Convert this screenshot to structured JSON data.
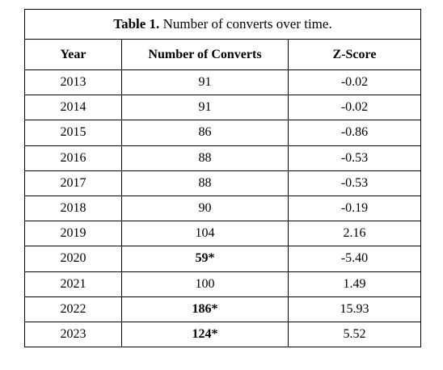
{
  "table": {
    "caption_label": "Table 1.",
    "caption_text": " Number of converts over time.",
    "columns": [
      "Year",
      "Number of Converts",
      "Z-Score"
    ],
    "rows": [
      {
        "year": "2013",
        "converts": "91",
        "converts_bold": false,
        "z": "-0.02"
      },
      {
        "year": "2014",
        "converts": "91",
        "converts_bold": false,
        "z": "-0.02"
      },
      {
        "year": "2015",
        "converts": "86",
        "converts_bold": false,
        "z": "-0.86"
      },
      {
        "year": "2016",
        "converts": "88",
        "converts_bold": false,
        "z": "-0.53"
      },
      {
        "year": "2017",
        "converts": "88",
        "converts_bold": false,
        "z": "-0.53"
      },
      {
        "year": "2018",
        "converts": "90",
        "converts_bold": false,
        "z": "-0.19"
      },
      {
        "year": "2019",
        "converts": "104",
        "converts_bold": false,
        "z": "2.16"
      },
      {
        "year": "2020",
        "converts": "59*",
        "converts_bold": true,
        "z": "-5.40"
      },
      {
        "year": "2021",
        "converts": "100",
        "converts_bold": false,
        "z": "1.49"
      },
      {
        "year": "2022",
        "converts": "186*",
        "converts_bold": true,
        "z": "15.93"
      },
      {
        "year": "2023",
        "converts": "124*",
        "converts_bold": true,
        "z": "5.52"
      }
    ]
  }
}
